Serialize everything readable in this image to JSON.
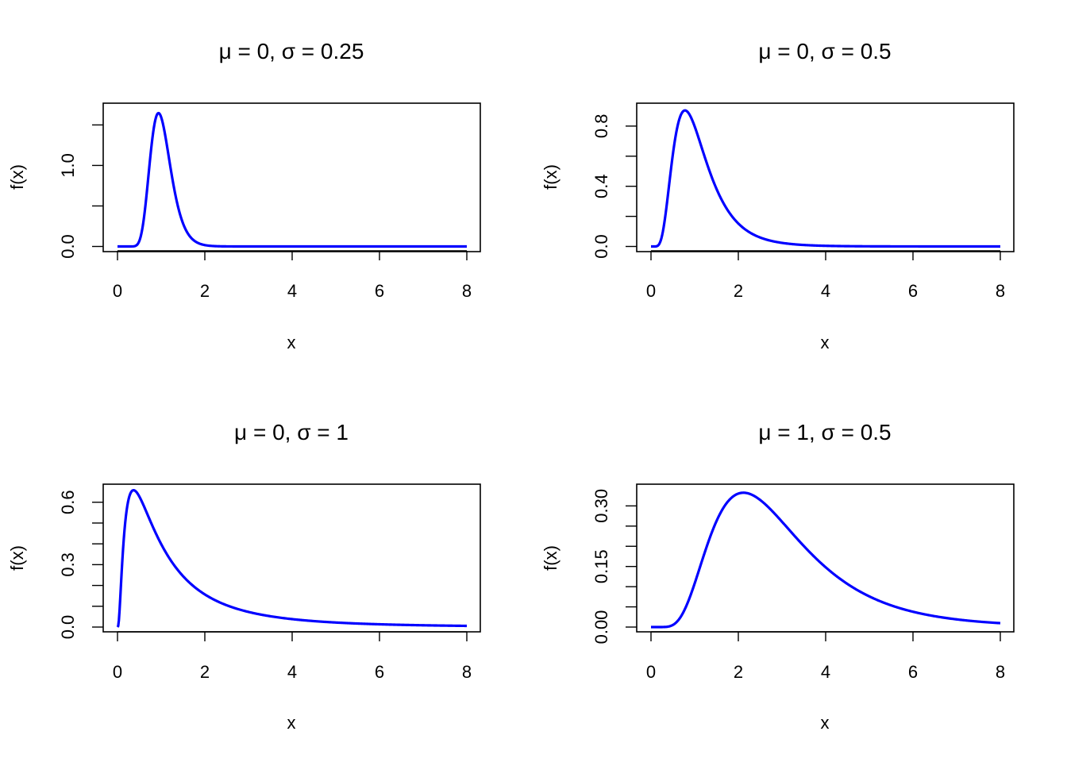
{
  "chart_data": [
    {
      "type": "line",
      "title": "μ = 0,  σ = 0.25",
      "xlabel": "x",
      "ylabel": "f(x)",
      "xlim": [
        0,
        8
      ],
      "ylim": [
        0,
        1.6
      ],
      "x_ticks": [
        "0",
        "2",
        "4",
        "6",
        "8"
      ],
      "y_ticks": [
        "0.0",
        "",
        "1.0",
        ""
      ],
      "y_tick_values": [
        0,
        0.5,
        1.0,
        1.5
      ],
      "grid": false,
      "series": [
        {
          "color": "#0000ff",
          "distribution": "lognormal",
          "meanlog": 0,
          "sdlog": 0.25,
          "peak": [
            0.94,
            1.69
          ]
        }
      ]
    },
    {
      "type": "line",
      "title": "μ = 0,  σ = 0.5",
      "xlabel": "x",
      "ylabel": "f(x)",
      "xlim": [
        0,
        8
      ],
      "ylim": [
        0,
        0.9
      ],
      "x_ticks": [
        "0",
        "2",
        "4",
        "6",
        "8"
      ],
      "y_ticks": [
        "0.0",
        "",
        "0.4",
        "",
        "0.8"
      ],
      "y_tick_values": [
        0,
        0.2,
        0.4,
        0.6,
        0.8
      ],
      "grid": false,
      "series": [
        {
          "color": "#0000ff",
          "distribution": "lognormal",
          "meanlog": 0,
          "sdlog": 0.5,
          "peak": [
            0.78,
            0.91
          ]
        }
      ]
    },
    {
      "type": "line",
      "title": "μ = 0,  σ = 1",
      "xlabel": "x",
      "ylabel": "f(x)",
      "xlim": [
        0,
        8
      ],
      "ylim": [
        0,
        0.66
      ],
      "x_ticks": [
        "0",
        "2",
        "4",
        "6",
        "8"
      ],
      "y_ticks": [
        "0.0",
        "",
        "0.3",
        "",
        "0.6"
      ],
      "y_tick_values": [
        0,
        0.1,
        0.2,
        0.3,
        0.4,
        0.5,
        0.6
      ],
      "y_tick_labels_at": [
        0,
        0.3,
        0.6
      ],
      "grid": false,
      "series": [
        {
          "color": "#0000ff",
          "distribution": "lognormal",
          "meanlog": 0,
          "sdlog": 1,
          "peak": [
            0.37,
            0.66
          ]
        }
      ]
    },
    {
      "type": "line",
      "title": "μ = 1,  σ = 0.5",
      "xlabel": "x",
      "ylabel": "f(x)",
      "xlim": [
        0,
        8
      ],
      "ylim": [
        0,
        0.34
      ],
      "x_ticks": [
        "0",
        "2",
        "4",
        "6",
        "8"
      ],
      "y_ticks": [
        "0.00",
        "0.15",
        "0.30"
      ],
      "y_tick_values": [
        0,
        0.05,
        0.1,
        0.15,
        0.2,
        0.25,
        0.3
      ],
      "y_tick_labels_at": [
        0,
        0.15,
        0.3
      ],
      "grid": false,
      "series": [
        {
          "color": "#0000ff",
          "distribution": "lognormal",
          "meanlog": 1,
          "sdlog": 0.5,
          "peak": [
            2.12,
            0.34
          ]
        }
      ]
    }
  ]
}
